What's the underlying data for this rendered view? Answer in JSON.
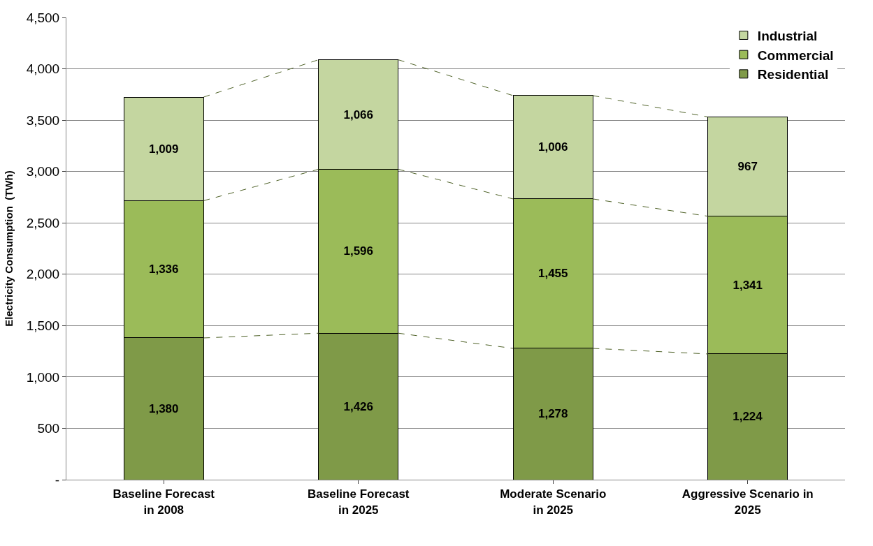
{
  "chart_data": {
    "type": "bar",
    "stacked": true,
    "ylabel": "Electricity Consumption  (TWh)",
    "categories": [
      "Baseline Forecast\nin 2008",
      "Baseline Forecast\nin 2025",
      "Moderate Scenario\nin 2025",
      "Aggressive Scenario in\n2025"
    ],
    "series": [
      {
        "name": "Residential",
        "color": "#7f9a48",
        "values": [
          1380,
          1426,
          1278,
          1224
        ],
        "value_labels": [
          "1,380",
          "1,426",
          "1,278",
          "1,224"
        ]
      },
      {
        "name": "Commercial",
        "color": "#9bbb59",
        "values": [
          1336,
          1596,
          1455,
          1341
        ],
        "value_labels": [
          "1,336",
          "1,596",
          "1,455",
          "1,341"
        ]
      },
      {
        "name": "Industrial",
        "color": "#c4d6a0",
        "values": [
          1009,
          1066,
          1006,
          967
        ],
        "value_labels": [
          "1,009",
          "1,066",
          "1,006",
          "967"
        ]
      }
    ],
    "ylim": [
      0,
      4500
    ],
    "yticks": [
      {
        "value": 0,
        "label": "-"
      },
      {
        "value": 500,
        "label": "500"
      },
      {
        "value": 1000,
        "label": "1,000"
      },
      {
        "value": 1500,
        "label": "1,500"
      },
      {
        "value": 2000,
        "label": "2,000"
      },
      {
        "value": 2500,
        "label": "2,500"
      },
      {
        "value": 3000,
        "label": "3,000"
      },
      {
        "value": 3500,
        "label": "3,500"
      },
      {
        "value": 4000,
        "label": "4,000"
      },
      {
        "value": 4500,
        "label": "4,500"
      }
    ],
    "grid": "y",
    "legend": "top right"
  }
}
